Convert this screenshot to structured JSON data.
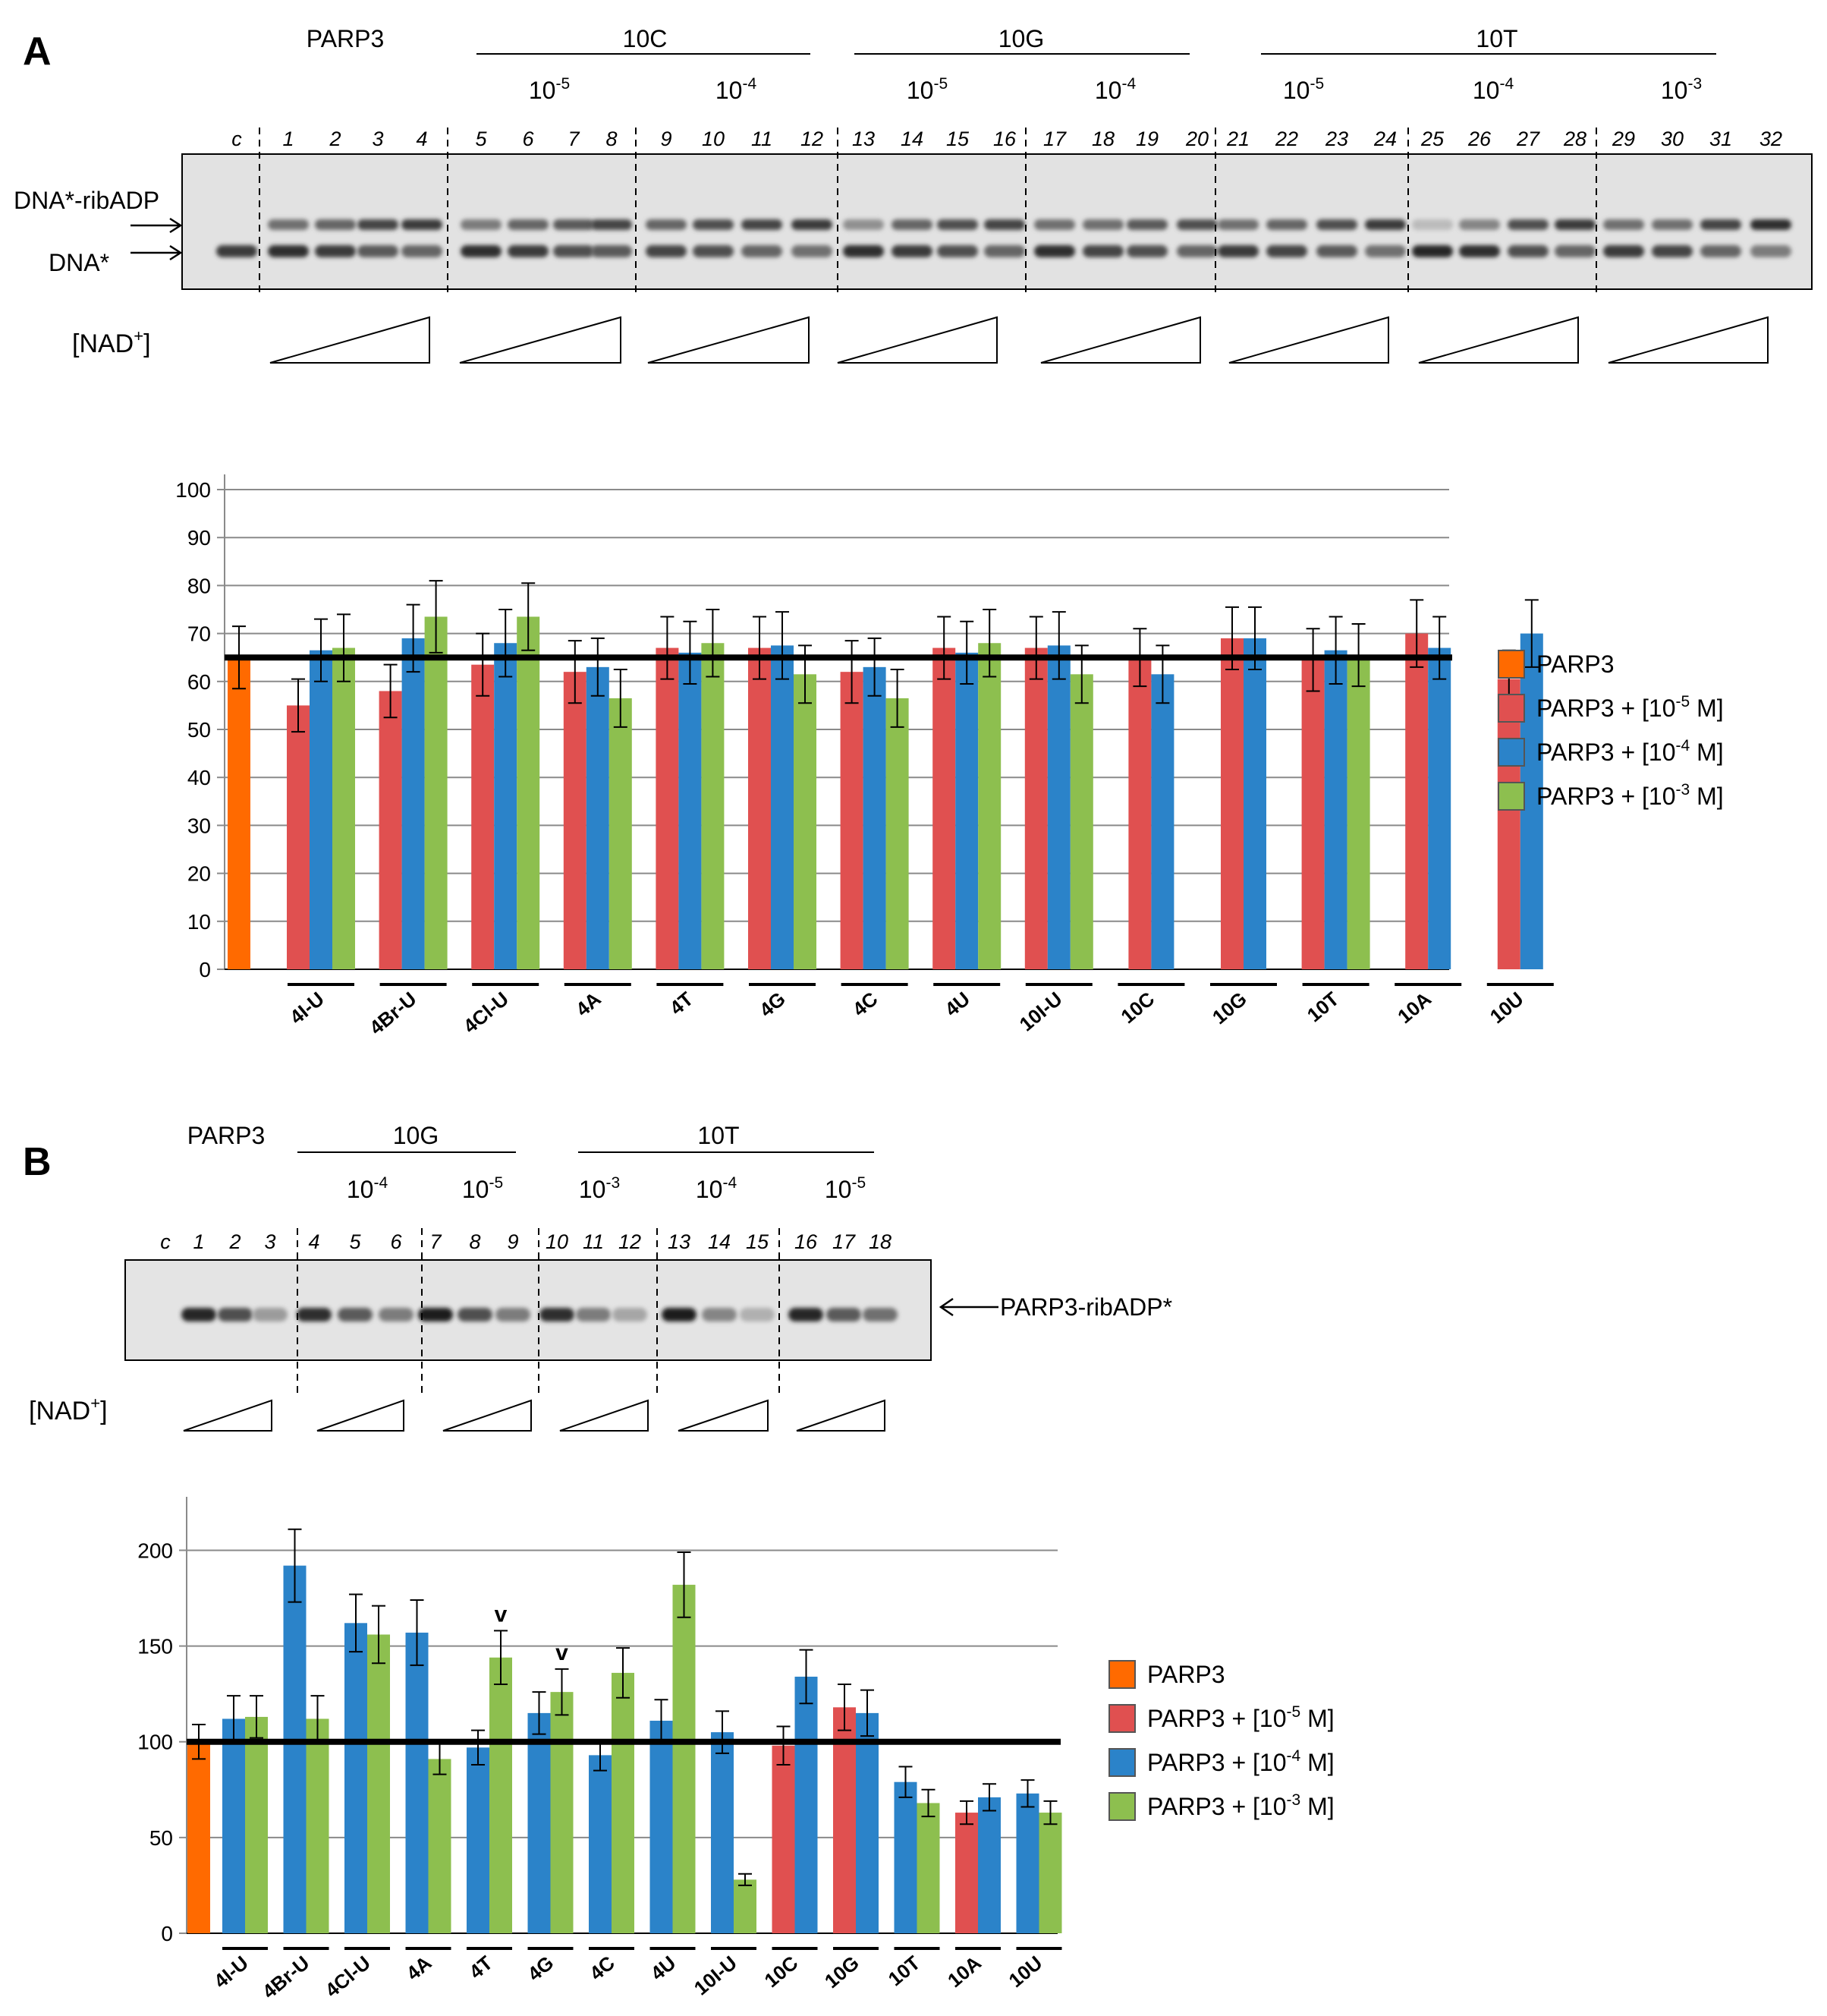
{
  "panel_a": {
    "letter": "A",
    "gel": {
      "header_parp3": "PARP3",
      "groups": [
        {
          "name": "10C",
          "concs": [
            {
              "base": "10",
              "exp": "-5"
            },
            {
              "base": "10",
              "exp": "-4"
            }
          ]
        },
        {
          "name": "10G",
          "concs": [
            {
              "base": "10",
              "exp": "-5"
            },
            {
              "base": "10",
              "exp": "-4"
            }
          ]
        },
        {
          "name": "10T",
          "concs": [
            {
              "base": "10",
              "exp": "-5"
            },
            {
              "base": "10",
              "exp": "-4"
            },
            {
              "base": "10",
              "exp": "-3"
            }
          ]
        }
      ],
      "lanes": [
        "c",
        "1",
        "2",
        "3",
        "4",
        "5",
        "6",
        "7",
        "8",
        "9",
        "10",
        "11",
        "12",
        "13",
        "14",
        "15",
        "16",
        "17",
        "18",
        "19",
        "20",
        "21",
        "22",
        "23",
        "24",
        "25",
        "26",
        "27",
        "28",
        "29",
        "30",
        "31",
        "32"
      ],
      "band_labels": [
        "DNA*-ribADP",
        "DNA*"
      ],
      "nad_label": "[NAD",
      "nad_sup": "+",
      "nad_close": "]",
      "upper_band_intensity": [
        0,
        0.55,
        0.6,
        0.75,
        0.8,
        0.5,
        0.6,
        0.65,
        0.75,
        0.6,
        0.7,
        0.75,
        0.8,
        0.4,
        0.6,
        0.7,
        0.75,
        0.55,
        0.55,
        0.65,
        0.7,
        0.55,
        0.6,
        0.7,
        0.8,
        0.2,
        0.45,
        0.7,
        0.8,
        0.55,
        0.55,
        0.75,
        0.85
      ],
      "lower_band_intensity": [
        0.8,
        0.85,
        0.8,
        0.65,
        0.6,
        0.85,
        0.8,
        0.7,
        0.65,
        0.75,
        0.7,
        0.6,
        0.55,
        0.85,
        0.8,
        0.7,
        0.6,
        0.85,
        0.75,
        0.7,
        0.6,
        0.8,
        0.75,
        0.65,
        0.55,
        0.9,
        0.85,
        0.7,
        0.6,
        0.8,
        0.75,
        0.6,
        0.5
      ]
    },
    "chart_data": {
      "type": "bar",
      "ylim": [
        0,
        100
      ],
      "yticks": [
        0,
        10,
        20,
        30,
        40,
        50,
        60,
        70,
        80,
        90,
        100
      ],
      "reference_line": 65,
      "control": {
        "name": "PARP3",
        "value": 65,
        "err": 6.5
      },
      "categories": [
        {
          "label": "4I-U",
          "bars": [
            {
              "s": 1,
              "v": 55,
              "e": 5.5
            },
            {
              "s": 2,
              "v": 66.5,
              "e": 6.5
            },
            {
              "s": 3,
              "v": 67,
              "e": 7
            }
          ]
        },
        {
          "label": "4Br-U",
          "bars": [
            {
              "s": 1,
              "v": 58,
              "e": 5.5
            },
            {
              "s": 2,
              "v": 69,
              "e": 7
            },
            {
              "s": 3,
              "v": 73.5,
              "e": 7.5
            }
          ]
        },
        {
          "label": "4Cl-U",
          "bars": [
            {
              "s": 1,
              "v": 63.5,
              "e": 6.5
            },
            {
              "s": 2,
              "v": 68,
              "e": 7
            },
            {
              "s": 3,
              "v": 73.5,
              "e": 7
            }
          ]
        },
        {
          "label": "4A",
          "bars": [
            {
              "s": 1,
              "v": 62,
              "e": 6.5
            },
            {
              "s": 2,
              "v": 63,
              "e": 6
            },
            {
              "s": 3,
              "v": 56.5,
              "e": 6
            }
          ]
        },
        {
          "label": "4T",
          "bars": [
            {
              "s": 1,
              "v": 67,
              "e": 6.5
            },
            {
              "s": 2,
              "v": 66,
              "e": 6.5
            },
            {
              "s": 3,
              "v": 68,
              "e": 7
            }
          ]
        },
        {
          "label": "4G",
          "bars": [
            {
              "s": 1,
              "v": 67,
              "e": 6.5
            },
            {
              "s": 2,
              "v": 67.5,
              "e": 7
            },
            {
              "s": 3,
              "v": 61.5,
              "e": 6
            }
          ]
        },
        {
          "label": "4C",
          "bars": [
            {
              "s": 1,
              "v": 62,
              "e": 6.5
            },
            {
              "s": 2,
              "v": 63,
              "e": 6
            },
            {
              "s": 3,
              "v": 56.5,
              "e": 6
            }
          ]
        },
        {
          "label": "4U",
          "bars": [
            {
              "s": 1,
              "v": 67,
              "e": 6.5
            },
            {
              "s": 2,
              "v": 66,
              "e": 6.5
            },
            {
              "s": 3,
              "v": 68,
              "e": 7
            }
          ]
        },
        {
          "label": "10I-U",
          "bars": [
            {
              "s": 1,
              "v": 67,
              "e": 6.5
            },
            {
              "s": 2,
              "v": 67.5,
              "e": 7
            },
            {
              "s": 3,
              "v": 61.5,
              "e": 6
            }
          ]
        },
        {
          "label": "10C",
          "bars": [
            {
              "s": 1,
              "v": 65,
              "e": 6
            },
            {
              "s": 2,
              "v": 61.5,
              "e": 6
            }
          ]
        },
        {
          "label": "10G",
          "bars": [
            {
              "s": 1,
              "v": 69,
              "e": 6.5
            },
            {
              "s": 2,
              "v": 69,
              "e": 6.5
            }
          ]
        },
        {
          "label": "10T",
          "bars": [
            {
              "s": 1,
              "v": 64.5,
              "e": 6.5
            },
            {
              "s": 2,
              "v": 66.5,
              "e": 7
            },
            {
              "s": 3,
              "v": 65.5,
              "e": 6.5
            }
          ]
        },
        {
          "label": "10A",
          "bars": [
            {
              "s": 1,
              "v": 70,
              "e": 7
            },
            {
              "s": 2,
              "v": 67,
              "e": 6.5
            }
          ]
        },
        {
          "label": "10U",
          "bars": [
            {
              "s": 1,
              "v": 60.5,
              "e": 6
            },
            {
              "s": 2,
              "v": 70,
              "e": 7
            }
          ]
        }
      ]
    }
  },
  "panel_b": {
    "letter": "B",
    "gel": {
      "header_parp3": "PARP3",
      "groups": [
        {
          "name": "10G",
          "concs": [
            {
              "base": "10",
              "exp": "-4"
            },
            {
              "base": "10",
              "exp": "-5"
            }
          ]
        },
        {
          "name": "10T",
          "concs": [
            {
              "base": "10",
              "exp": "-3"
            },
            {
              "base": "10",
              "exp": "-4"
            },
            {
              "base": "10",
              "exp": "-5"
            }
          ]
        }
      ],
      "lanes": [
        "c",
        "1",
        "2",
        "3",
        "4",
        "5",
        "6",
        "7",
        "8",
        "9",
        "10",
        "11",
        "12",
        "13",
        "14",
        "15",
        "16",
        "17",
        "18"
      ],
      "band_label": "PARP3-ribADP*",
      "nad_label": "[NAD",
      "nad_sup": "+",
      "nad_close": "]",
      "band_intensity": [
        0,
        0.9,
        0.7,
        0.35,
        0.85,
        0.65,
        0.5,
        0.95,
        0.7,
        0.5,
        0.85,
        0.5,
        0.3,
        0.95,
        0.45,
        0.25,
        0.9,
        0.65,
        0.55
      ]
    },
    "chart_data": {
      "type": "bar",
      "ylim": [
        0,
        220
      ],
      "yticks": [
        0,
        50,
        100,
        150,
        200
      ],
      "reference_line": 100,
      "control": {
        "name": "PARP3",
        "value": 100,
        "err": 9
      },
      "categories": [
        {
          "label": "4I-U",
          "bars": [
            {
              "s": 2,
              "v": 112,
              "e": 12
            },
            {
              "s": 3,
              "v": 113,
              "e": 11
            }
          ]
        },
        {
          "label": "4Br-U",
          "bars": [
            {
              "s": 2,
              "v": 192,
              "e": 19
            },
            {
              "s": 3,
              "v": 112,
              "e": 12
            }
          ]
        },
        {
          "label": "4Cl-U",
          "bars": [
            {
              "s": 2,
              "v": 162,
              "e": 15
            },
            {
              "s": 3,
              "v": 156,
              "e": 15
            }
          ]
        },
        {
          "label": "4A",
          "bars": [
            {
              "s": 2,
              "v": 157,
              "e": 17
            },
            {
              "s": 3,
              "v": 91,
              "e": 8
            }
          ]
        },
        {
          "label": "4T",
          "bars": [
            {
              "s": 2,
              "v": 97,
              "e": 9
            },
            {
              "s": 3,
              "v": 144,
              "e": 14,
              "mark": "v"
            }
          ]
        },
        {
          "label": "4G",
          "bars": [
            {
              "s": 2,
              "v": 115,
              "e": 11
            },
            {
              "s": 3,
              "v": 126,
              "e": 12,
              "mark": "v"
            }
          ]
        },
        {
          "label": "4C",
          "bars": [
            {
              "s": 2,
              "v": 93,
              "e": 8
            },
            {
              "s": 3,
              "v": 136,
              "e": 13
            }
          ]
        },
        {
          "label": "4U",
          "bars": [
            {
              "s": 2,
              "v": 111,
              "e": 11
            },
            {
              "s": 3,
              "v": 182,
              "e": 17
            }
          ]
        },
        {
          "label": "10I-U",
          "bars": [
            {
              "s": 2,
              "v": 105,
              "e": 11
            },
            {
              "s": 3,
              "v": 28,
              "e": 3
            }
          ]
        },
        {
          "label": "10C",
          "bars": [
            {
              "s": 1,
              "v": 98,
              "e": 10
            },
            {
              "s": 2,
              "v": 134,
              "e": 14
            }
          ]
        },
        {
          "label": "10G",
          "bars": [
            {
              "s": 1,
              "v": 118,
              "e": 12
            },
            {
              "s": 2,
              "v": 115,
              "e": 12
            }
          ]
        },
        {
          "label": "10T",
          "bars": [
            {
              "s": 2,
              "v": 79,
              "e": 8
            },
            {
              "s": 3,
              "v": 68,
              "e": 7
            }
          ]
        },
        {
          "label": "10A",
          "bars": [
            {
              "s": 1,
              "v": 63,
              "e": 6
            },
            {
              "s": 2,
              "v": 71,
              "e": 7
            }
          ]
        },
        {
          "label": "10U",
          "bars": [
            {
              "s": 2,
              "v": 73,
              "e": 7
            },
            {
              "s": 3,
              "v": 63,
              "e": 6
            }
          ]
        }
      ]
    }
  },
  "legend": {
    "items": [
      {
        "label": "PARP3"
      },
      {
        "label": "PARP3 + [10",
        "sup": "-5",
        "suffix": " M]"
      },
      {
        "label": "PARP3 + [10",
        "sup": "-4",
        "suffix": " M]"
      },
      {
        "label": "PARP3 + [10",
        "sup": "-3",
        "suffix": " M]"
      }
    ]
  },
  "colors": {
    "control": "#ff6a00",
    "s1": "#e05050",
    "s2": "#2b83c9",
    "s3": "#8dbf4f"
  }
}
